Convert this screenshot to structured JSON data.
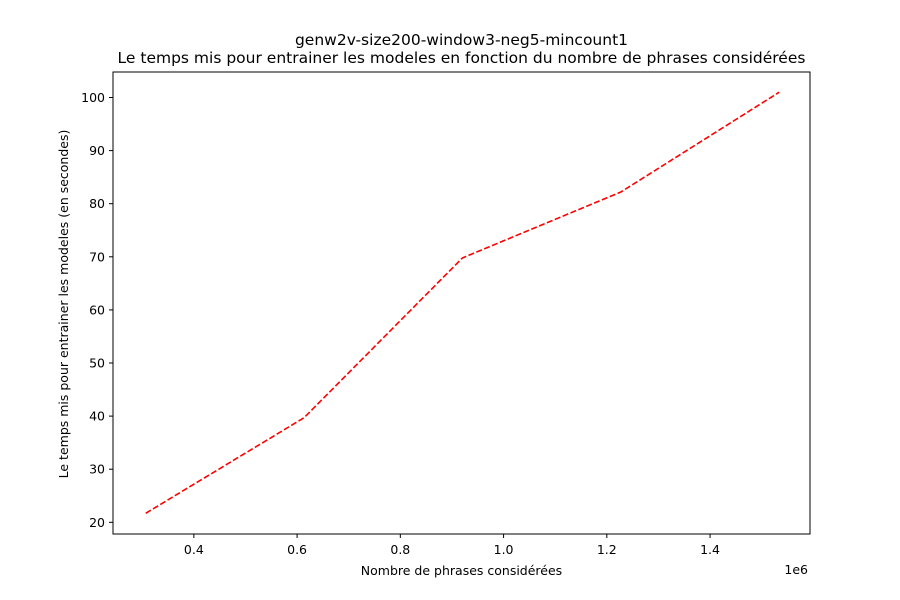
{
  "chart_data": {
    "type": "line",
    "title_line1": "genw2v-size200-window3-neg5-mincount1",
    "title_line2": "Le temps mis pour entrainer les modeles en fonction du nombre de phrases considérées",
    "xlabel": "Nombre de phrases considérées",
    "ylabel": "Le temps mis pour entrainer les modeles (en secondes)",
    "x_offset_label": "1e6",
    "xlim": [
      0.2434,
      1.5936
    ],
    "ylim": [
      17.8,
      104.8
    ],
    "x_ticks": [
      0.4,
      0.6,
      0.8,
      1.0,
      1.2,
      1.4
    ],
    "x_tick_labels": [
      "0.4",
      "0.6",
      "0.8",
      "1.0",
      "1.2",
      "1.4"
    ],
    "y_ticks": [
      20,
      30,
      40,
      50,
      60,
      70,
      80,
      90,
      100
    ],
    "y_tick_labels": [
      "20",
      "30",
      "40",
      "50",
      "60",
      "70",
      "80",
      "90",
      "100"
    ],
    "series": [
      {
        "color": "#ff0000",
        "line_style": "dashed",
        "x": [
          0.3068,
          0.6136,
          0.9204,
          1.2272,
          1.534
        ],
        "y": [
          21.7,
          39.7,
          69.8,
          82.2,
          101.0
        ]
      }
    ]
  }
}
